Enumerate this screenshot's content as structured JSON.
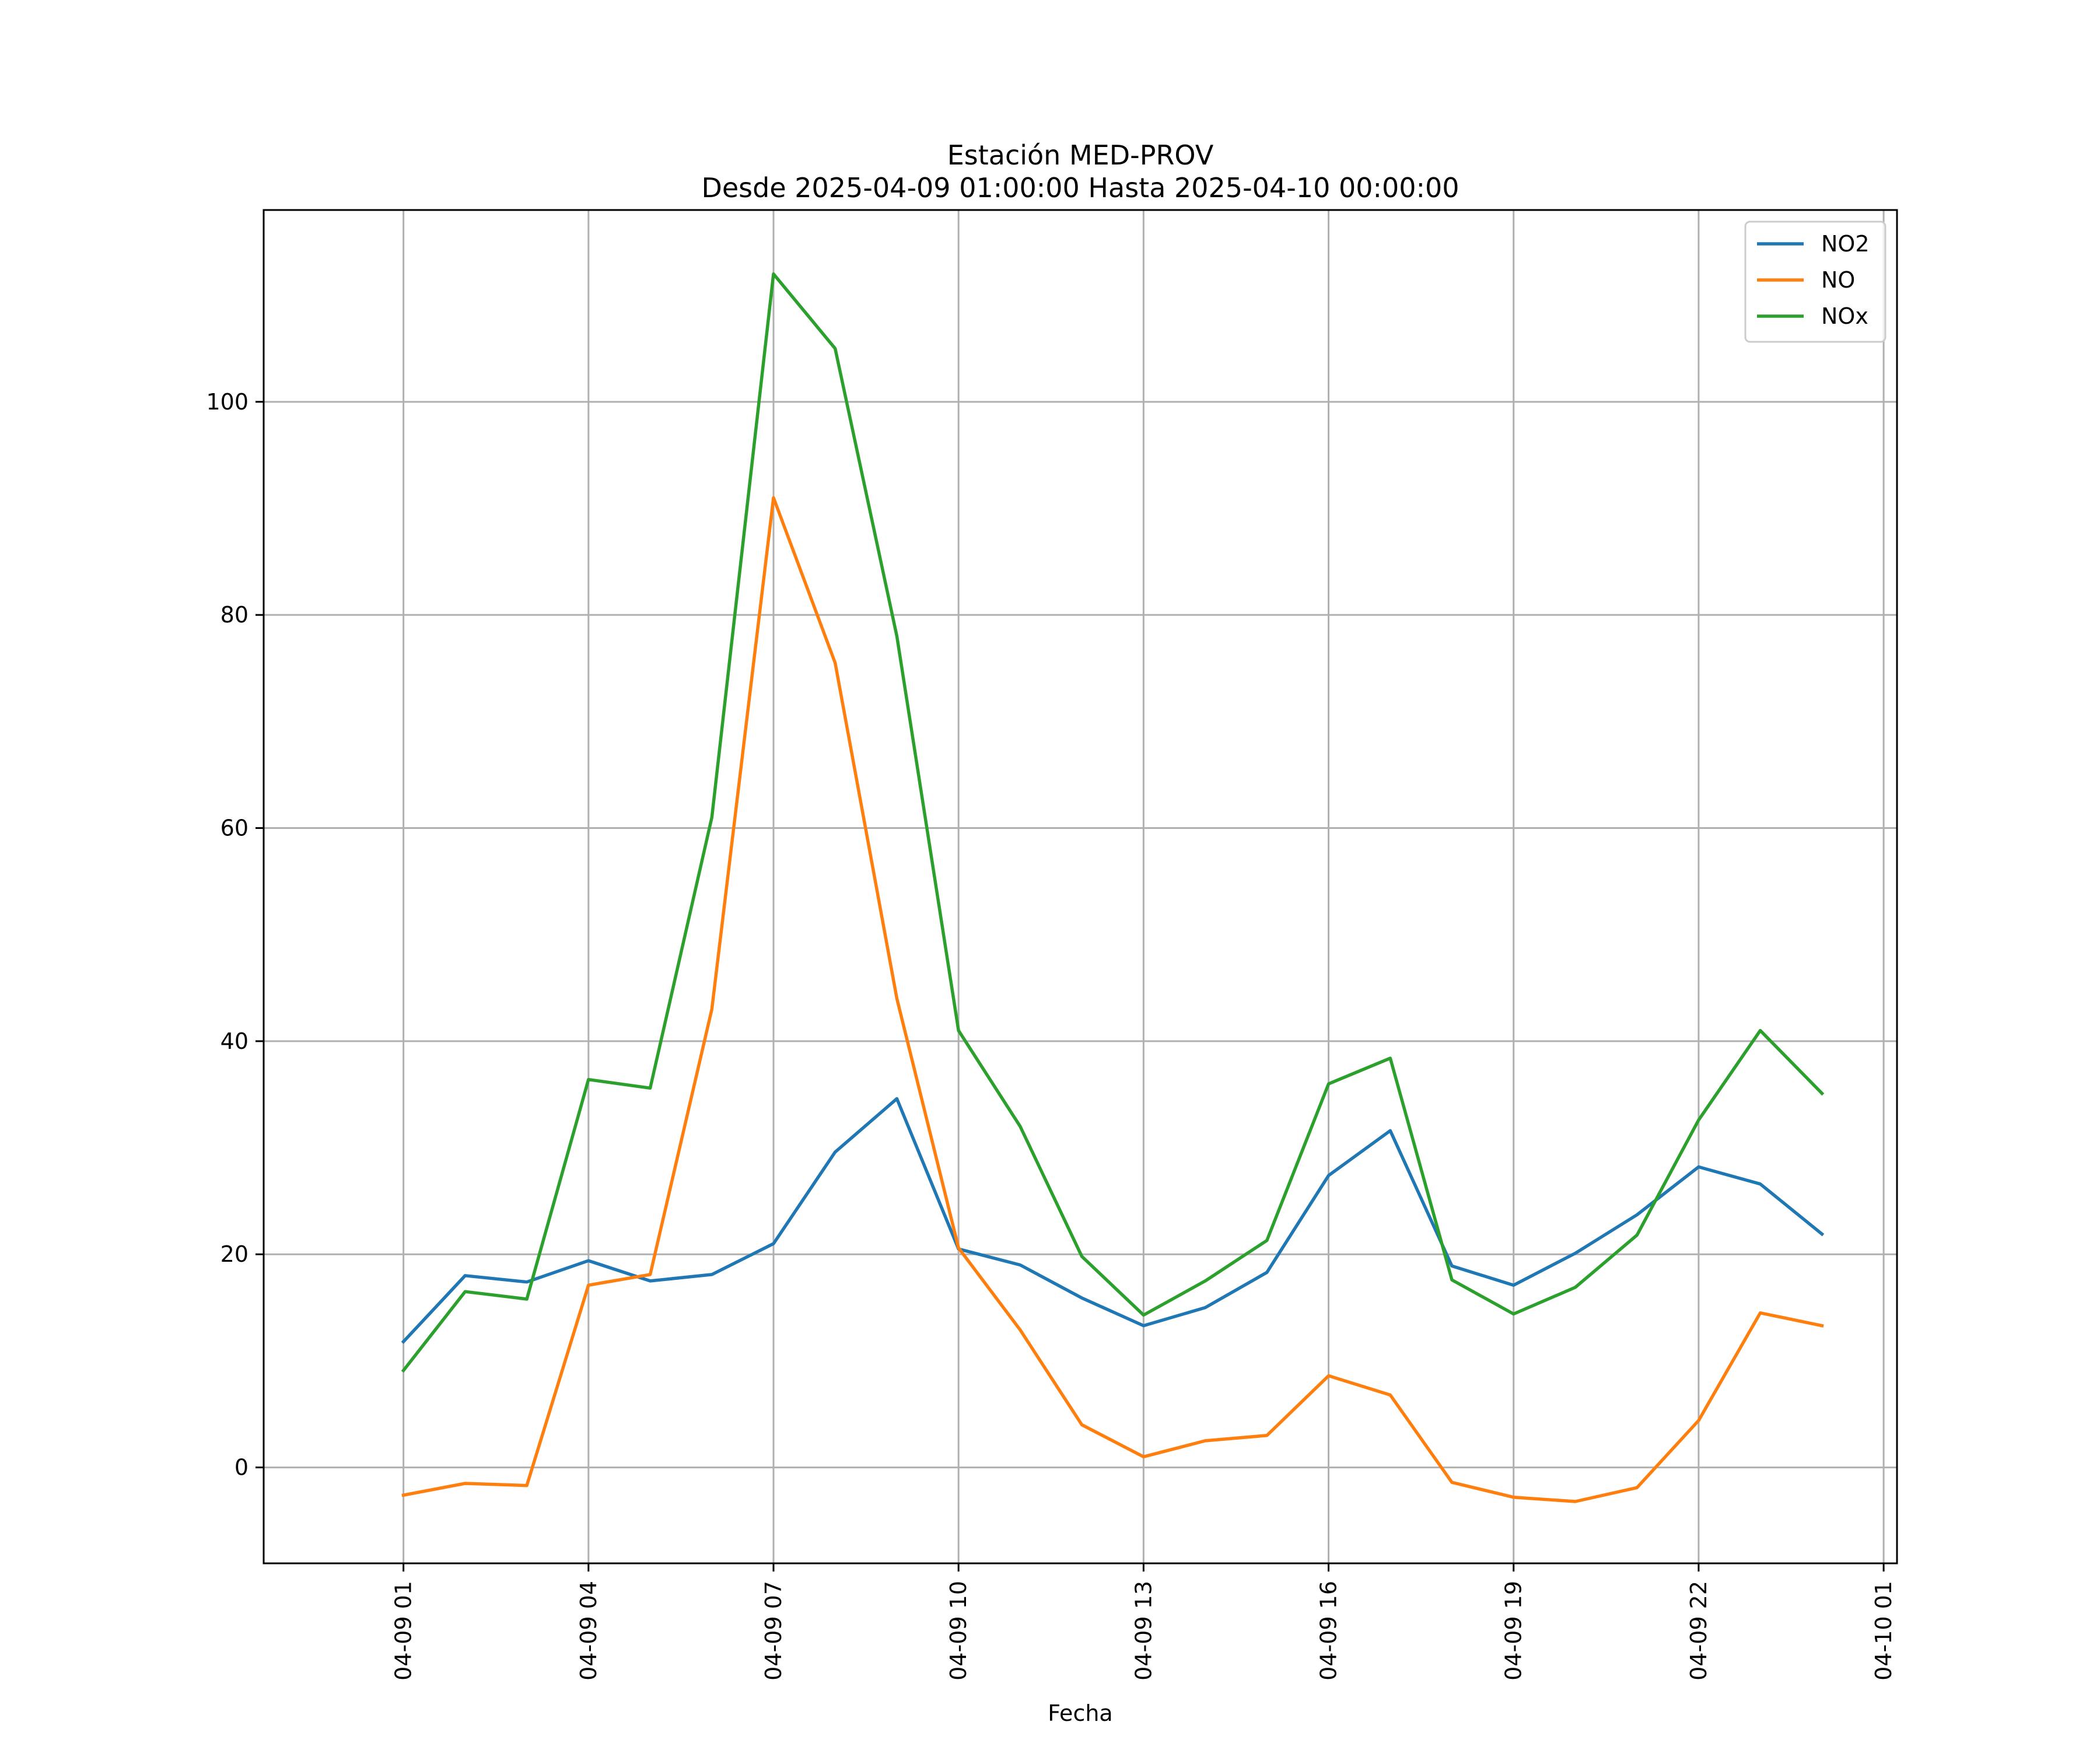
{
  "chart_data": {
    "type": "line",
    "title": "Estación MED-PROV",
    "subtitle": "Desde 2025-04-09 01:00:00 Hasta 2025-04-10 00:00:00",
    "xlabel": "Fecha",
    "ylabel": "",
    "x": [
      "2025-04-09 01:00",
      "2025-04-09 02:00",
      "2025-04-09 03:00",
      "2025-04-09 04:00",
      "2025-04-09 05:00",
      "2025-04-09 06:00",
      "2025-04-09 07:00",
      "2025-04-09 08:00",
      "2025-04-09 09:00",
      "2025-04-09 10:00",
      "2025-04-09 11:00",
      "2025-04-09 12:00",
      "2025-04-09 13:00",
      "2025-04-09 14:00",
      "2025-04-09 15:00",
      "2025-04-09 16:00",
      "2025-04-09 17:00",
      "2025-04-09 18:00",
      "2025-04-09 19:00",
      "2025-04-09 20:00",
      "2025-04-09 21:00",
      "2025-04-09 22:00",
      "2025-04-09 23:00",
      "2025-04-10 00:00"
    ],
    "series": [
      {
        "name": "NO2",
        "color": "#1f77b4",
        "values": [
          11.8,
          18.0,
          17.4,
          19.4,
          17.5,
          18.1,
          21.0,
          29.6,
          34.6,
          20.5,
          19.0,
          15.9,
          13.3,
          15.0,
          18.3,
          27.4,
          31.6,
          18.9,
          17.1,
          20.1,
          23.7,
          28.2,
          26.6,
          21.9
        ]
      },
      {
        "name": "NO",
        "color": "#ff7f0e",
        "values": [
          -2.6,
          -1.5,
          -1.7,
          17.1,
          18.1,
          43.0,
          91.0,
          75.5,
          44.0,
          20.6,
          12.9,
          4.0,
          1.0,
          2.5,
          3.0,
          8.6,
          6.8,
          -1.4,
          -2.8,
          -3.2,
          -1.9,
          4.4,
          14.5,
          13.3
        ]
      },
      {
        "name": "NOx",
        "color": "#2ca02c",
        "values": [
          9.1,
          16.5,
          15.8,
          36.4,
          35.6,
          61.0,
          112.0,
          105.0,
          78.0,
          41.0,
          32.0,
          19.8,
          14.3,
          17.5,
          21.3,
          36.0,
          38.4,
          17.6,
          14.4,
          16.9,
          21.8,
          32.6,
          41.0,
          35.1
        ]
      }
    ],
    "x_ticks": [
      "04-09 01",
      "04-09 04",
      "04-09 07",
      "04-09 10",
      "04-09 13",
      "04-09 16",
      "04-09 19",
      "04-09 22",
      "04-10 01"
    ],
    "y_ticks": [
      "0",
      "20",
      "40",
      "60",
      "80",
      "100"
    ],
    "xlim": [
      "2025-04-08 22:44",
      "2025-04-10 01:13"
    ],
    "ylim": [
      -9,
      118
    ],
    "grid": true,
    "legend_position": "top-right"
  }
}
